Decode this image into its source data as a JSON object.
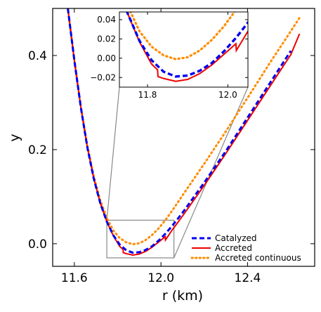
{
  "chart_data": {
    "type": "line",
    "xlabel": "r (km)",
    "ylabel": "y",
    "xlim": [
      11.5,
      12.71
    ],
    "ylim": [
      -0.048,
      0.5
    ],
    "xticks": [
      11.6,
      12.0,
      12.4
    ],
    "xtick_labels": [
      "11.6",
      "12.0",
      "12.4"
    ],
    "yticks": [
      0.0,
      0.2,
      0.4
    ],
    "ytick_labels": [
      "0.0",
      "0.2",
      "0.4"
    ],
    "legend_position": "bottom-right",
    "series": [
      {
        "name": "Catalyzed",
        "color": "#0000ee",
        "style": "dashed",
        "x": [
          11.57,
          11.6,
          11.63,
          11.66,
          11.69,
          11.72,
          11.75,
          11.78,
          11.81,
          11.84,
          11.87,
          11.9,
          11.93,
          11.96,
          11.99,
          12.02,
          12.05,
          12.1,
          12.2,
          12.3,
          12.4,
          12.5,
          12.6
        ],
        "y": [
          0.5,
          0.39,
          0.29,
          0.205,
          0.138,
          0.086,
          0.047,
          0.018,
          -0.002,
          -0.014,
          -0.019,
          -0.018,
          -0.013,
          -0.005,
          0.007,
          0.021,
          0.037,
          0.066,
          0.13,
          0.197,
          0.268,
          0.339,
          0.41
        ]
      },
      {
        "name": "Accreted",
        "color": "#ee0000",
        "style": "solid",
        "x": [
          11.57,
          11.6,
          11.63,
          11.66,
          11.69,
          11.72,
          11.75,
          11.78,
          11.81,
          11.825,
          11.826,
          11.84,
          11.87,
          11.9,
          11.93,
          11.96,
          11.99,
          12.02,
          12.021,
          12.05,
          12.1,
          12.2,
          12.3,
          12.4,
          12.5,
          12.6,
          12.64
        ],
        "y": [
          0.5,
          0.39,
          0.29,
          0.205,
          0.138,
          0.086,
          0.047,
          0.017,
          -0.006,
          -0.012,
          -0.019,
          -0.021,
          -0.024,
          -0.022,
          -0.016,
          -0.007,
          0.004,
          0.015,
          0.008,
          0.028,
          0.059,
          0.124,
          0.192,
          0.262,
          0.332,
          0.402,
          0.446
        ]
      },
      {
        "name": "Accreted continuous",
        "color": "#ff8c00",
        "style": "dotted",
        "x": [
          11.57,
          11.6,
          11.63,
          11.66,
          11.69,
          11.72,
          11.75,
          11.78,
          11.81,
          11.84,
          11.87,
          11.9,
          11.93,
          11.96,
          11.99,
          12.02,
          12.05,
          12.1,
          12.2,
          12.3,
          12.4,
          12.5,
          12.6,
          12.64
        ],
        "y": [
          0.5,
          0.39,
          0.292,
          0.209,
          0.143,
          0.092,
          0.055,
          0.028,
          0.012,
          0.003,
          -0.001,
          0.001,
          0.008,
          0.019,
          0.033,
          0.05,
          0.069,
          0.103,
          0.17,
          0.239,
          0.31,
          0.382,
          0.452,
          0.48
        ]
      }
    ],
    "inset": {
      "xlim": [
        11.73,
        12.05
      ],
      "ylim": [
        -0.03,
        0.048
      ],
      "xticks": [
        11.8,
        12.0
      ],
      "xtick_labels": [
        "11.8",
        "12.0"
      ],
      "yticks": [
        -0.02,
        0.0,
        0.02,
        0.04
      ],
      "ytick_labels": [
        "−0.02",
        "0.00",
        "0.02",
        "0.04"
      ],
      "zoom_region": {
        "x": [
          11.75,
          12.06
        ],
        "y": [
          -0.03,
          0.05
        ]
      }
    }
  }
}
